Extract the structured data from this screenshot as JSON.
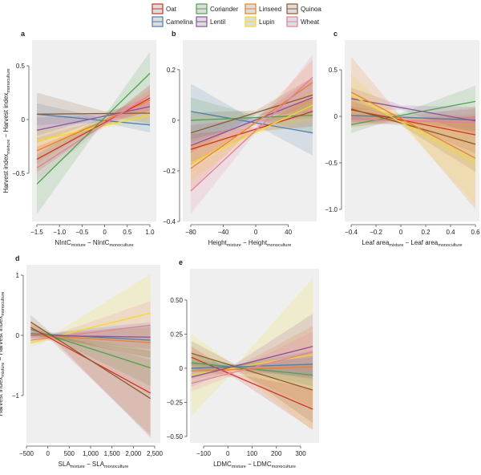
{
  "legend": {
    "placement": "top-center",
    "items": [
      {
        "name": "Oat",
        "color": "#d7301f"
      },
      {
        "name": "Camelina",
        "color": "#4a7fb0"
      },
      {
        "name": "Coriander",
        "color": "#4da34a"
      },
      {
        "name": "Lentil",
        "color": "#8e4f9e"
      },
      {
        "name": "Linseed",
        "color": "#f07f20"
      },
      {
        "name": "Lupin",
        "color": "#f2dc1c"
      },
      {
        "name": "Quinoa",
        "color": "#8b5a2b"
      },
      {
        "name": "Wheat",
        "color": "#e67f9b"
      }
    ]
  },
  "chart_data": [
    {
      "panel": "a",
      "type": "line",
      "xlabel": {
        "a": "NIntC",
        "a_sub": "mixture",
        "mid": " − NIntC",
        "b_sub": "monoculture"
      },
      "ylabel": {
        "a": "Harvest index",
        "a_sub": "mixture",
        "mid": " − Harvest index",
        "b_sub": "monoculture"
      },
      "xlim": [
        -1.606,
        1.142
      ],
      "ylim": [
        -0.948,
        0.739
      ],
      "xticks": [
        -1.5,
        -1.0,
        -0.5,
        0,
        0.5,
        1.0
      ],
      "xtick_labels": [
        "−1.5",
        "−1.0",
        "−0.5",
        "0",
        "0.5",
        "1.0"
      ],
      "yticks": [
        -0.5,
        0,
        0.5
      ],
      "ytick_labels": [
        "−0.5",
        "0",
        "0.5"
      ],
      "center": 0,
      "series": [
        {
          "name": "Camelina",
          "x": [
            -1.5,
            1.0
          ],
          "y": [
            0.05,
            -0.05
          ],
          "ci": [
            0.1,
            0.07
          ]
        },
        {
          "name": "Quinoa",
          "x": [
            -1.5,
            1.0
          ],
          "y": [
            0.05,
            0.06
          ],
          "ci": [
            0.2,
            0.1
          ]
        },
        {
          "name": "Lentil",
          "x": [
            -1.5,
            1.0
          ],
          "y": [
            -0.1,
            0.12
          ],
          "ci": [
            0.12,
            0.1
          ]
        },
        {
          "name": "Lupin",
          "x": [
            -1.5,
            1.0
          ],
          "y": [
            -0.2,
            0.04
          ],
          "ci": [
            0.1,
            0.06
          ]
        },
        {
          "name": "Linseed",
          "x": [
            -1.5,
            1.0
          ],
          "y": [
            -0.29,
            0.18
          ],
          "ci": [
            0.12,
            0.1
          ]
        },
        {
          "name": "Oat",
          "x": [
            -1.5,
            1.0
          ],
          "y": [
            -0.37,
            0.2
          ],
          "ci": [
            0.12,
            0.12
          ]
        },
        {
          "name": "Wheat",
          "x": [
            -1.5,
            1.0
          ],
          "y": [
            -0.45,
            0.23
          ],
          "ci": [
            0.12,
            0.1
          ]
        },
        {
          "name": "Coriander",
          "x": [
            -1.5,
            1.0
          ],
          "y": [
            -0.6,
            0.43
          ],
          "ci": [
            0.28,
            0.2
          ]
        }
      ]
    },
    {
      "panel": "b",
      "type": "line",
      "xlabel": {
        "a": "Height",
        "a_sub": "mixture",
        "mid": " − Height",
        "b_sub": "monoculture"
      },
      "ylabel": null,
      "xlim": [
        -89.8,
        74.9
      ],
      "ylim": [
        -0.4,
        0.317
      ],
      "xticks": [
        -80,
        -40,
        0,
        40
      ],
      "xtick_labels": [
        "−80",
        "−40",
        "0",
        "40"
      ],
      "yticks": [
        -0.4,
        -0.2,
        0,
        0.2
      ],
      "ytick_labels": [
        "−0.4",
        "−0.2",
        "0",
        "0.2"
      ],
      "center": 0,
      "series": [
        {
          "name": "Camelina",
          "x": [
            -80,
            70
          ],
          "y": [
            0.035,
            -0.05
          ],
          "ci": [
            0.11,
            0.09
          ]
        },
        {
          "name": "Coriander",
          "x": [
            -80,
            70
          ],
          "y": [
            0.0,
            0.02
          ],
          "ci": [
            0.09,
            0.07
          ]
        },
        {
          "name": "Quinoa",
          "x": [
            -80,
            70
          ],
          "y": [
            -0.05,
            0.1
          ],
          "ci": [
            0.08,
            0.07
          ]
        },
        {
          "name": "Lentil",
          "x": [
            -80,
            70
          ],
          "y": [
            -0.1,
            0.09
          ],
          "ci": [
            0.08,
            0.08
          ]
        },
        {
          "name": "Oat",
          "x": [
            -80,
            70
          ],
          "y": [
            -0.115,
            0.035
          ],
          "ci": [
            0.06,
            0.06
          ]
        },
        {
          "name": "Lupin",
          "x": [
            -80,
            70
          ],
          "y": [
            -0.17,
            0.06
          ],
          "ci": [
            0.07,
            0.06
          ]
        },
        {
          "name": "Linseed",
          "x": [
            -80,
            70
          ],
          "y": [
            -0.19,
            0.15
          ],
          "ci": [
            0.09,
            0.09
          ]
        },
        {
          "name": "Wheat",
          "x": [
            -80,
            70
          ],
          "y": [
            -0.28,
            0.17
          ],
          "ci": [
            0.09,
            0.09
          ]
        }
      ]
    },
    {
      "panel": "c",
      "type": "line",
      "xlabel": {
        "a": "Leaf area",
        "a_sub": "mixture",
        "mid": " − Leaf area",
        "b_sub": "monoculture"
      },
      "ylabel": null,
      "xlim": [
        -0.452,
        0.632
      ],
      "ylim": [
        -1.13,
        0.819
      ],
      "xticks": [
        -0.4,
        -0.2,
        0,
        0.2,
        0.4,
        0.6
      ],
      "xtick_labels": [
        "−0.4",
        "−0.2",
        "0",
        "0.2",
        "0.4",
        "0.6"
      ],
      "yticks": [
        -1.0,
        -0.5,
        0,
        0.5
      ],
      "ytick_labels": [
        "−1.0",
        "−0.5",
        "0",
        "0.5"
      ],
      "center": 0,
      "series": [
        {
          "name": "Coriander",
          "x": [
            -0.4,
            0.6
          ],
          "y": [
            -0.09,
            0.16
          ],
          "ci": [
            0.09,
            0.17
          ]
        },
        {
          "name": "Camelina",
          "x": [
            -0.4,
            0.6
          ],
          "y": [
            0.01,
            -0.04
          ],
          "ci": [
            0.1,
            0.12
          ]
        },
        {
          "name": "Wheat",
          "x": [
            -0.4,
            0.6
          ],
          "y": [
            -0.03,
            -0.07
          ],
          "ci": [
            0.08,
            0.1
          ]
        },
        {
          "name": "Lentil",
          "x": [
            -0.4,
            0.6
          ],
          "y": [
            0.19,
            -0.05
          ],
          "ci": [
            0.12,
            0.15
          ]
        },
        {
          "name": "Oat",
          "x": [
            -0.4,
            0.6
          ],
          "y": [
            0.07,
            -0.2
          ],
          "ci": [
            0.1,
            0.2
          ]
        },
        {
          "name": "Quinoa",
          "x": [
            -0.4,
            0.6
          ],
          "y": [
            0.08,
            -0.3
          ],
          "ci": [
            0.14,
            0.3
          ]
        },
        {
          "name": "Linseed",
          "x": [
            -0.4,
            0.6
          ],
          "y": [
            0.26,
            -0.45
          ],
          "ci": [
            0.38,
            0.55
          ]
        },
        {
          "name": "Lupin",
          "x": [
            -0.4,
            0.6
          ],
          "y": [
            0.23,
            -0.5
          ],
          "ci": [
            0.22,
            0.45
          ]
        }
      ]
    },
    {
      "panel": "d",
      "type": "line",
      "xlabel": {
        "a": "SLA",
        "a_sub": "mixture",
        "mid": " − SLA",
        "b_sub": "monoculture"
      },
      "ylabel": {
        "a": "Harvest index",
        "a_sub": "mixture",
        "mid": " − Harvest index",
        "b_sub": "monoculture"
      },
      "xlim": [
        -500,
        2631
      ],
      "ylim": [
        -1.787,
        1.173
      ],
      "xticks": [
        -500,
        0,
        500,
        1000,
        1500,
        2000,
        2500
      ],
      "xtick_labels": [
        "−500",
        "0",
        "500",
        "1,000",
        "1,500",
        "2,000",
        "2,500"
      ],
      "yticks": [
        -1,
        0,
        1
      ],
      "ytick_labels": [
        "−1",
        "0",
        "1"
      ],
      "center": 100,
      "series": [
        {
          "name": "Lupin",
          "x": [
            -400,
            2400
          ],
          "y": [
            -0.12,
            0.37
          ],
          "ci": [
            0.08,
            0.65
          ]
        },
        {
          "name": "Wheat",
          "x": [
            -400,
            2400
          ],
          "y": [
            -0.08,
            0.17
          ],
          "ci": [
            0.06,
            0.4
          ]
        },
        {
          "name": "Camelina",
          "x": [
            -400,
            2400
          ],
          "y": [
            0.03,
            -0.08
          ],
          "ci": [
            0.08,
            0.3
          ]
        },
        {
          "name": "Lentil",
          "x": [
            -400,
            2400
          ],
          "y": [
            0.0,
            -0.03
          ],
          "ci": [
            0.06,
            0.2
          ]
        },
        {
          "name": "Linseed",
          "x": [
            -400,
            2400
          ],
          "y": [
            0.01,
            -0.12
          ],
          "ci": [
            0.06,
            0.25
          ]
        },
        {
          "name": "Coriander",
          "x": [
            -400,
            2400
          ],
          "y": [
            0.1,
            -0.54
          ],
          "ci": [
            0.08,
            0.3
          ]
        },
        {
          "name": "Oat",
          "x": [
            -400,
            2400
          ],
          "y": [
            0.13,
            -0.96
          ],
          "ci": [
            0.1,
            0.7
          ]
        },
        {
          "name": "Quinoa",
          "x": [
            -400,
            2400
          ],
          "y": [
            0.22,
            -1.05
          ],
          "ci": [
            0.12,
            0.65
          ]
        }
      ]
    },
    {
      "panel": "e",
      "type": "line",
      "xlabel": {
        "a": "LDMC",
        "a_sub": "mixture",
        "mid": " − LDMC",
        "b_sub": "monoculture"
      },
      "ylabel": null,
      "xlim": [
        -156,
        376
      ],
      "ylim": [
        -0.547,
        0.729
      ],
      "xticks": [
        -100,
        0,
        100,
        200,
        300
      ],
      "xtick_labels": [
        "−100",
        "0",
        "100",
        "200",
        "300"
      ],
      "yticks": [
        -0.5,
        -0.25,
        0,
        0.25,
        0.5
      ],
      "ytick_labels": [
        "−0.50",
        "−0.25",
        "0",
        "0.25",
        "0.50"
      ],
      "center": 30,
      "series": [
        {
          "name": "Lupin",
          "x": [
            -150,
            350
          ],
          "y": [
            -0.05,
            0.1
          ],
          "ci": [
            0.3,
            0.56
          ]
        },
        {
          "name": "Oat",
          "x": [
            -150,
            350
          ],
          "y": [
            0.08,
            -0.3
          ],
          "ci": [
            0.08,
            0.15
          ]
        },
        {
          "name": "Quinoa",
          "x": [
            -150,
            350
          ],
          "y": [
            0.11,
            -0.16
          ],
          "ci": [
            0.09,
            0.24
          ]
        },
        {
          "name": "Coriander",
          "x": [
            -150,
            350
          ],
          "y": [
            0.04,
            -0.05
          ],
          "ci": [
            0.06,
            0.08
          ]
        },
        {
          "name": "Linseed",
          "x": [
            -150,
            350
          ],
          "y": [
            -0.02,
            0.01
          ],
          "ci": [
            0.06,
            0.3
          ]
        },
        {
          "name": "Camelina",
          "x": [
            -150,
            350
          ],
          "y": [
            0.0,
            0.03
          ],
          "ci": [
            0.06,
            0.1
          ]
        },
        {
          "name": "Lentil",
          "x": [
            -150,
            350
          ],
          "y": [
            -0.065,
            0.16
          ],
          "ci": [
            0.07,
            0.24
          ]
        },
        {
          "name": "Wheat",
          "x": [
            -150,
            350
          ],
          "y": [
            -0.11,
            0.12
          ],
          "ci": [
            0.06,
            0.15
          ]
        }
      ]
    }
  ]
}
